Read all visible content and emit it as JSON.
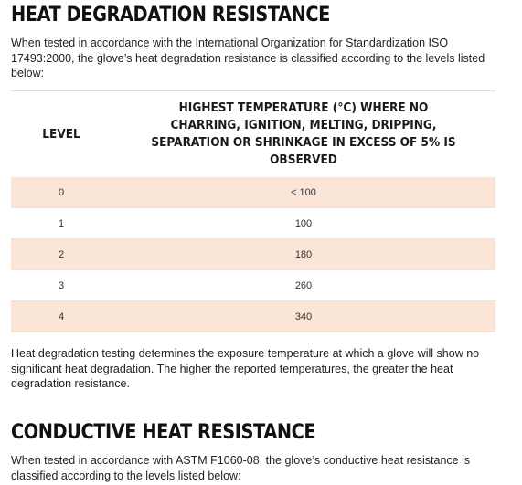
{
  "heat_degradation": {
    "title": "HEAT DEGRADATION RESISTANCE",
    "intro": "When tested in accordance with the International Organization for Standardization ISO 17493:2000, the glove’s heat degradation resistance is classified according to the levels listed below:",
    "table": {
      "headers": {
        "level": "LEVEL",
        "temperature": "HIGHEST TEMPERATURE (°C) WHERE NO CHARRING, IGNITION, MELTING, DRIPPING, SEPARATION OR SHRINKAGE IN EXCESS OF 5% IS OBSERVED"
      },
      "rows": [
        {
          "level": "0",
          "temperature": "< 100"
        },
        {
          "level": "1",
          "temperature": "100"
        },
        {
          "level": "2",
          "temperature": "180"
        },
        {
          "level": "3",
          "temperature": "260"
        },
        {
          "level": "4",
          "temperature": "340"
        }
      ],
      "stripe_color": "#fbe5d6"
    },
    "description": "Heat degradation testing determines the exposure temperature at which a glove will show no significant heat degradation. The higher the reported temperatures, the greater the heat degradation resistance."
  },
  "conductive_heat": {
    "title": "CONDUCTIVE HEAT RESISTANCE",
    "intro": "When tested in accordance with ASTM F1060-08, the glove’s conductive heat resistance is classified according to the levels listed below:"
  }
}
